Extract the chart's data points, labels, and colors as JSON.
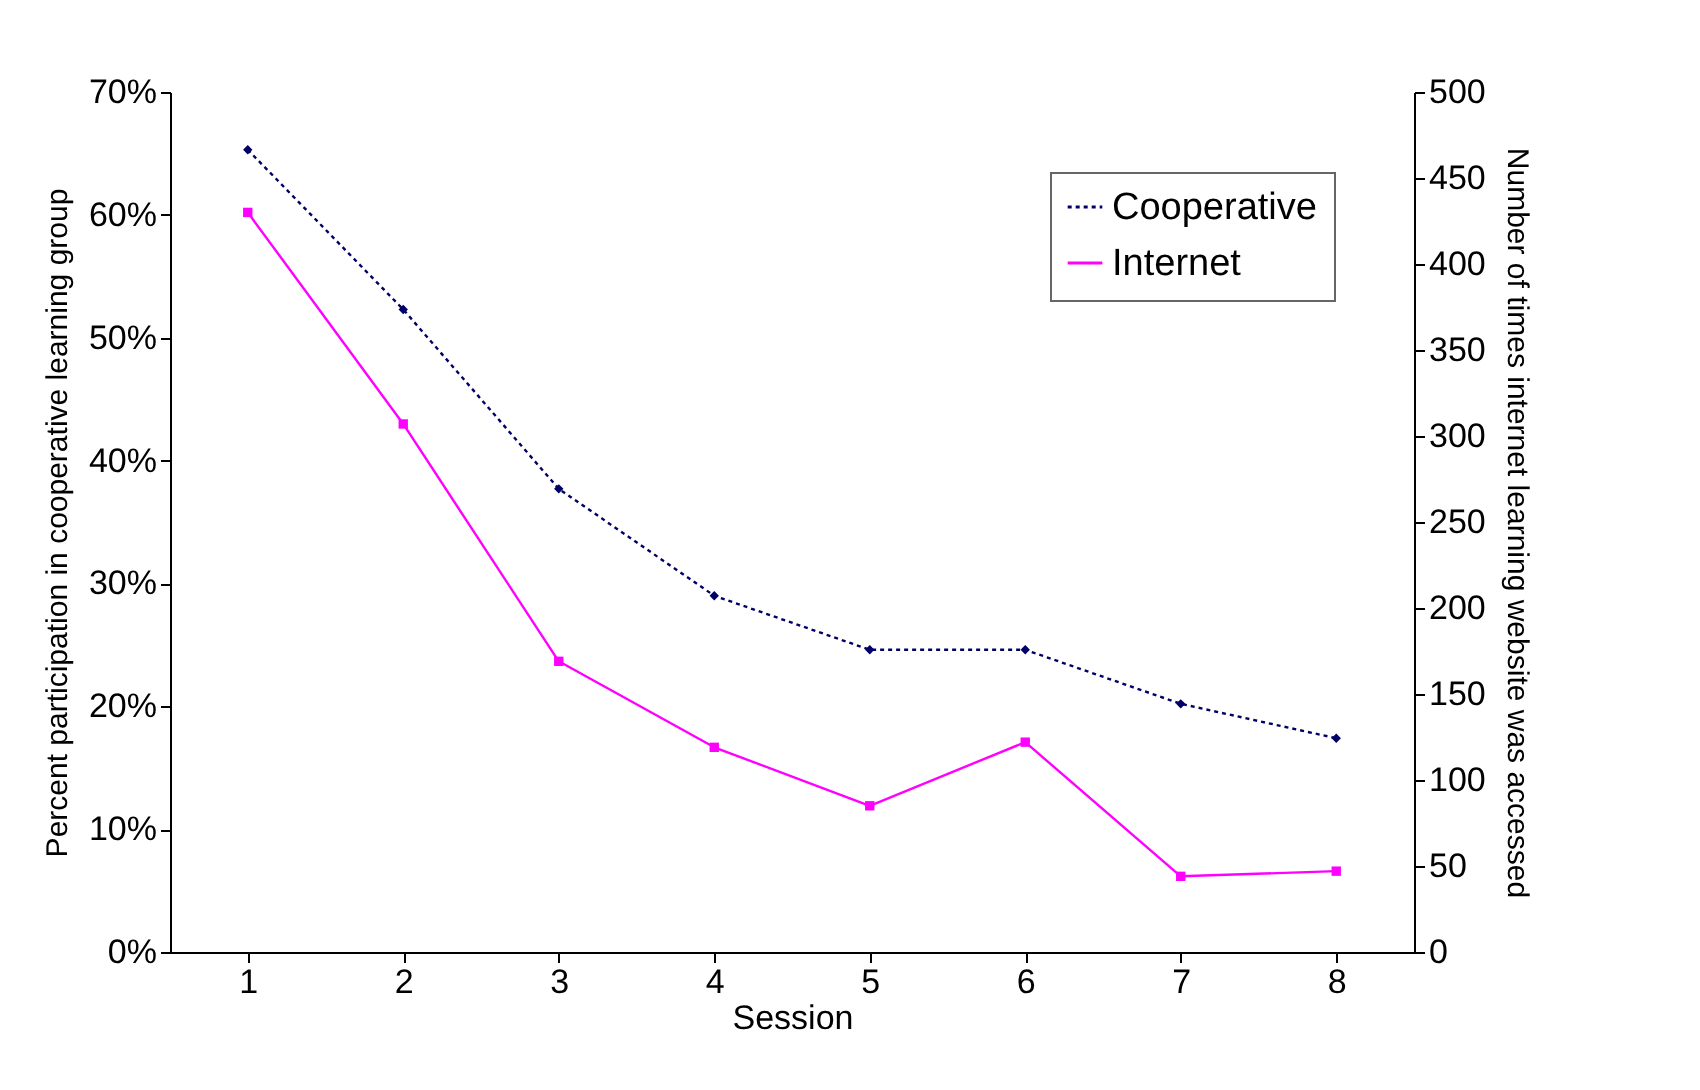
{
  "chart_data": {
    "type": "line",
    "xlabel": "Session",
    "ylabel": "Percent participation in cooperative learning group",
    "y2label": "Number of times internet learning website was accessed",
    "categories": [
      "1",
      "2",
      "3",
      "4",
      "5",
      "6",
      "7",
      "8"
    ],
    "series": [
      {
        "name": "Cooperative",
        "color": "#000066",
        "marker": "diamond",
        "line_style": "dotted",
        "values": [
          65.3,
          52.3,
          37.7,
          29.0,
          24.6,
          24.6,
          20.2,
          17.4
        ]
      },
      {
        "name": "Internet",
        "color": "#ff00ff",
        "marker": "square",
        "line_style": "solid",
        "axis": "y2",
        "values": [
          430,
          307,
          169,
          119,
          85,
          122,
          44,
          47
        ]
      }
    ],
    "ylim": [
      0,
      70
    ],
    "yticks": [
      {
        "value": 0,
        "label": "0%"
      },
      {
        "value": 10,
        "label": "10%"
      },
      {
        "value": 20,
        "label": "20%"
      },
      {
        "value": 30,
        "label": "30%"
      },
      {
        "value": 40,
        "label": "40%"
      },
      {
        "value": 50,
        "label": "50%"
      },
      {
        "value": 60,
        "label": "60%"
      },
      {
        "value": 70,
        "label": "70%"
      }
    ],
    "y2lim": [
      0,
      500
    ],
    "y2ticks": [
      0,
      50,
      100,
      150,
      200,
      250,
      300,
      350,
      400,
      450,
      500
    ],
    "grid": false,
    "legend": "top right"
  }
}
